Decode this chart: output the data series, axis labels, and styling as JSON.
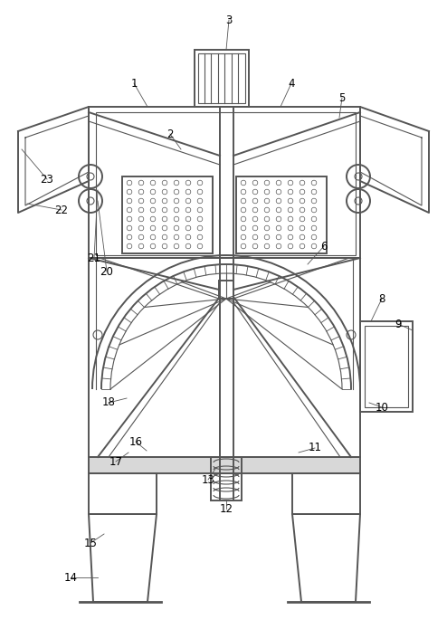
{
  "bg_color": "#ffffff",
  "line_color": "#555555",
  "lw": 1.4,
  "lw_thin": 0.8,
  "lw_thick": 2.0
}
